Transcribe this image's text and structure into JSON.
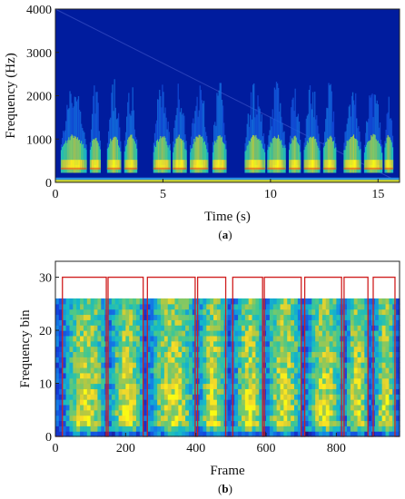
{
  "chart_data": [
    {
      "type": "heatmap",
      "caption_open": "(",
      "caption_letter": "a",
      "caption_close": ")",
      "xlabel": "Time (s)",
      "ylabel": "Frequency (Hz)",
      "xlim": [
        0,
        16
      ],
      "ylim": [
        0,
        4000
      ],
      "xticks": [
        0,
        5,
        10,
        15
      ],
      "yticks": [
        0,
        1000,
        2000,
        3000,
        4000
      ],
      "x_tick_labels": [
        "0",
        "5",
        "10",
        "15"
      ],
      "y_tick_labels": [
        "0",
        "1000",
        "2000",
        "3000",
        "4000"
      ],
      "colormap": "parula-like",
      "background_color": "#001c9e",
      "speech_segments_s": [
        [
          0.25,
          1.45
        ],
        [
          1.6,
          2.1
        ],
        [
          2.4,
          3.05
        ],
        [
          3.2,
          3.8
        ],
        [
          4.55,
          5.35
        ],
        [
          5.45,
          6.1
        ],
        [
          6.25,
          7.1
        ],
        [
          7.3,
          7.95
        ],
        [
          8.8,
          9.75
        ],
        [
          9.85,
          10.7
        ],
        [
          10.85,
          11.4
        ],
        [
          11.55,
          12.3
        ],
        [
          12.45,
          13.05
        ],
        [
          13.4,
          14.2
        ],
        [
          14.35,
          15.2
        ],
        [
          15.3,
          15.7
        ]
      ]
    },
    {
      "type": "heatmap",
      "caption_open": "(",
      "caption_letter": "b",
      "caption_close": ")",
      "xlabel": "Frame",
      "ylabel": "Frequency bin",
      "xlim": [
        0,
        980
      ],
      "ylim": [
        0,
        33
      ],
      "xticks": [
        0,
        200,
        400,
        600,
        800
      ],
      "yticks": [
        0,
        10,
        20,
        30
      ],
      "x_tick_labels": [
        "0",
        "200",
        "400",
        "600",
        "800"
      ],
      "y_tick_labels": [
        "0",
        "10",
        "20",
        "30"
      ],
      "data_bin_range": [
        0,
        26
      ],
      "colormap": "parula-like",
      "overlay_color": "#d02020",
      "overlay_level": 30,
      "overlay_base": 0,
      "vad_segments_frames": [
        [
          20,
          145
        ],
        [
          150,
          250
        ],
        [
          262,
          398
        ],
        [
          405,
          485
        ],
        [
          505,
          590
        ],
        [
          595,
          700
        ],
        [
          710,
          815
        ],
        [
          822,
          890
        ],
        [
          905,
          967
        ]
      ]
    }
  ]
}
